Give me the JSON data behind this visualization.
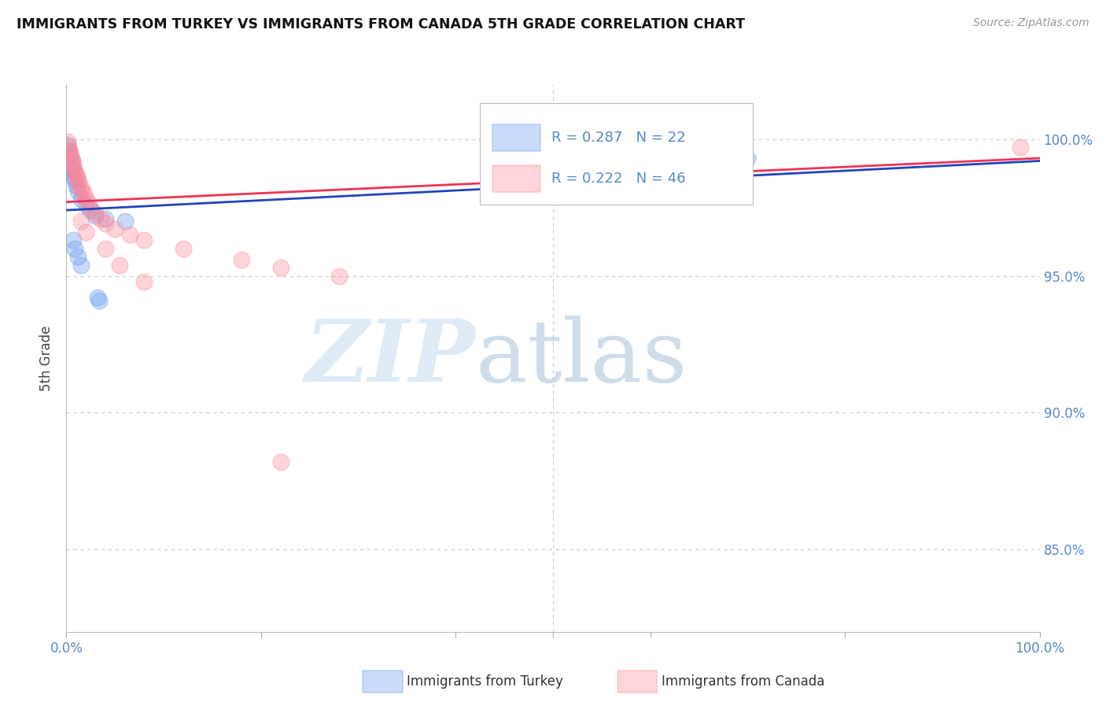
{
  "title": "IMMIGRANTS FROM TURKEY VS IMMIGRANTS FROM CANADA 5TH GRADE CORRELATION CHART",
  "source": "Source: ZipAtlas.com",
  "ylabel": "5th Grade",
  "xlim": [
    0.0,
    1.0
  ],
  "ylim": [
    0.82,
    1.02
  ],
  "legend_turkey_R": 0.287,
  "legend_turkey_N": 22,
  "legend_canada_R": 0.222,
  "legend_canada_N": 46,
  "turkey_color": "#6699ee",
  "canada_color": "#ff8899",
  "turkey_line_color": "#2244bb",
  "canada_line_color": "#ee3355",
  "background_color": "#ffffff",
  "grid_color": "#cccccc",
  "turkey_line_x0": 0.0,
  "turkey_line_y0": 0.974,
  "turkey_line_x1": 1.0,
  "turkey_line_y1": 0.992,
  "canada_line_x0": 0.0,
  "canada_line_y0": 0.977,
  "canada_line_x1": 1.0,
  "canada_line_y1": 0.993,
  "turkey_x": [
    0.001,
    0.002,
    0.003,
    0.004,
    0.005,
    0.006,
    0.007,
    0.008,
    0.009,
    0.01,
    0.012,
    0.015,
    0.02,
    0.025,
    0.03,
    0.04,
    0.06,
    0.65,
    0.7
  ],
  "turkey_y": [
    0.998,
    0.996,
    0.994,
    0.993,
    0.991,
    0.989,
    0.988,
    0.986,
    0.985,
    0.983,
    0.981,
    0.978,
    0.976,
    0.974,
    0.972,
    0.971,
    0.97,
    0.988,
    0.993
  ],
  "canada_x": [
    0.001,
    0.002,
    0.003,
    0.004,
    0.005,
    0.006,
    0.007,
    0.008,
    0.009,
    0.01,
    0.011,
    0.012,
    0.013,
    0.015,
    0.016,
    0.018,
    0.02,
    0.022,
    0.025,
    0.03,
    0.035,
    0.04,
    0.05,
    0.065,
    0.08,
    0.12,
    0.18,
    0.22,
    0.28,
    0.98
  ],
  "canada_y": [
    0.999,
    0.997,
    0.996,
    0.995,
    0.993,
    0.992,
    0.991,
    0.989,
    0.988,
    0.987,
    0.986,
    0.985,
    0.984,
    0.982,
    0.981,
    0.98,
    0.978,
    0.977,
    0.975,
    0.973,
    0.971,
    0.969,
    0.967,
    0.965,
    0.963,
    0.96,
    0.956,
    0.953,
    0.95,
    0.997
  ],
  "extra_turkey_x": [
    0.007,
    0.009,
    0.012,
    0.015,
    0.032,
    0.034
  ],
  "extra_turkey_y": [
    0.963,
    0.96,
    0.957,
    0.954,
    0.942,
    0.941
  ],
  "extra_canada_x": [
    0.015,
    0.02,
    0.04,
    0.055,
    0.08,
    0.22
  ],
  "extra_canada_y": [
    0.97,
    0.966,
    0.96,
    0.954,
    0.948,
    0.882
  ]
}
